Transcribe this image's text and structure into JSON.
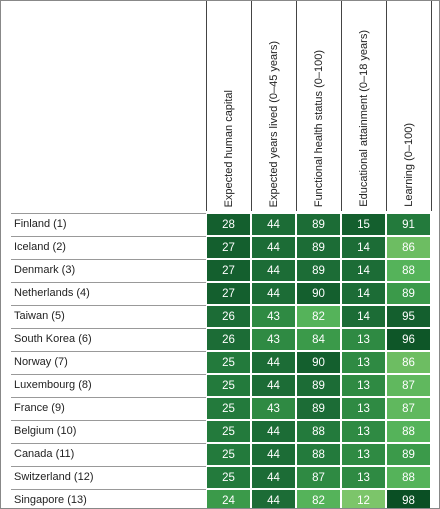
{
  "table": {
    "columns": [
      "Expected human capital",
      "Expected years lived (0–45 years)",
      "Functional health status (0–100)",
      "Educational attainment (0–18 years)",
      "Learning (0–100)"
    ],
    "rows": [
      {
        "label": "Finland (1)",
        "cells": [
          {
            "value": 28,
            "color": "#145f2e"
          },
          {
            "value": 44,
            "color": "#1c6c36"
          },
          {
            "value": 89,
            "color": "#1c6c36"
          },
          {
            "value": 15,
            "color": "#145f2e"
          },
          {
            "value": 91,
            "color": "#237a3c"
          }
        ]
      },
      {
        "label": "Iceland (2)",
        "cells": [
          {
            "value": 27,
            "color": "#145f2e"
          },
          {
            "value": 44,
            "color": "#1c6c36"
          },
          {
            "value": 89,
            "color": "#1c6c36"
          },
          {
            "value": 14,
            "color": "#1c6c36"
          },
          {
            "value": 86,
            "color": "#6dbd62"
          }
        ]
      },
      {
        "label": "Denmark (3)",
        "cells": [
          {
            "value": 27,
            "color": "#145f2e"
          },
          {
            "value": 44,
            "color": "#1c6c36"
          },
          {
            "value": 89,
            "color": "#1c6c36"
          },
          {
            "value": 14,
            "color": "#1c6c36"
          },
          {
            "value": 88,
            "color": "#55b35a"
          }
        ]
      },
      {
        "label": "Netherlands (4)",
        "cells": [
          {
            "value": 27,
            "color": "#145f2e"
          },
          {
            "value": 44,
            "color": "#1c6c36"
          },
          {
            "value": 90,
            "color": "#145f2e"
          },
          {
            "value": 14,
            "color": "#1c6c36"
          },
          {
            "value": 89,
            "color": "#3b9a4a"
          }
        ]
      },
      {
        "label": "Taiwan (5)",
        "cells": [
          {
            "value": 26,
            "color": "#1c6c36"
          },
          {
            "value": 43,
            "color": "#2f8a43"
          },
          {
            "value": 82,
            "color": "#55b35a"
          },
          {
            "value": 14,
            "color": "#1c6c36"
          },
          {
            "value": 95,
            "color": "#145f2e"
          }
        ]
      },
      {
        "label": "South Korea (6)",
        "cells": [
          {
            "value": 26,
            "color": "#1c6c36"
          },
          {
            "value": 43,
            "color": "#2f8a43"
          },
          {
            "value": 84,
            "color": "#3b9a4a"
          },
          {
            "value": 13,
            "color": "#2f8a43"
          },
          {
            "value": 96,
            "color": "#0e5628"
          }
        ]
      },
      {
        "label": "Norway (7)",
        "cells": [
          {
            "value": 25,
            "color": "#237a3c"
          },
          {
            "value": 44,
            "color": "#1c6c36"
          },
          {
            "value": 90,
            "color": "#145f2e"
          },
          {
            "value": 13,
            "color": "#2f8a43"
          },
          {
            "value": 86,
            "color": "#6dbd62"
          }
        ]
      },
      {
        "label": "Luxembourg (8)",
        "cells": [
          {
            "value": 25,
            "color": "#237a3c"
          },
          {
            "value": 44,
            "color": "#1c6c36"
          },
          {
            "value": 89,
            "color": "#1c6c36"
          },
          {
            "value": 13,
            "color": "#2f8a43"
          },
          {
            "value": 87,
            "color": "#60b85e"
          }
        ]
      },
      {
        "label": "France (9)",
        "cells": [
          {
            "value": 25,
            "color": "#237a3c"
          },
          {
            "value": 43,
            "color": "#2f8a43"
          },
          {
            "value": 89,
            "color": "#1c6c36"
          },
          {
            "value": 13,
            "color": "#2f8a43"
          },
          {
            "value": 87,
            "color": "#60b85e"
          }
        ]
      },
      {
        "label": "Belgium (10)",
        "cells": [
          {
            "value": 25,
            "color": "#237a3c"
          },
          {
            "value": 44,
            "color": "#1c6c36"
          },
          {
            "value": 88,
            "color": "#237a3c"
          },
          {
            "value": 13,
            "color": "#2f8a43"
          },
          {
            "value": 88,
            "color": "#55b35a"
          }
        ]
      },
      {
        "label": "Canada (11)",
        "cells": [
          {
            "value": 25,
            "color": "#237a3c"
          },
          {
            "value": 44,
            "color": "#1c6c36"
          },
          {
            "value": 88,
            "color": "#237a3c"
          },
          {
            "value": 13,
            "color": "#2f8a43"
          },
          {
            "value": 89,
            "color": "#3b9a4a"
          }
        ]
      },
      {
        "label": "Switzerland (12)",
        "cells": [
          {
            "value": 25,
            "color": "#237a3c"
          },
          {
            "value": 44,
            "color": "#1c6c36"
          },
          {
            "value": 87,
            "color": "#2f8a43"
          },
          {
            "value": 13,
            "color": "#2f8a43"
          },
          {
            "value": 88,
            "color": "#55b35a"
          }
        ]
      },
      {
        "label": "Singapore (13)",
        "cells": [
          {
            "value": 24,
            "color": "#3b9a4a"
          },
          {
            "value": 44,
            "color": "#1c6c36"
          },
          {
            "value": 82,
            "color": "#55b35a"
          },
          {
            "value": 12,
            "color": "#7cc56a"
          },
          {
            "value": 98,
            "color": "#0a4f24"
          }
        ]
      }
    ]
  }
}
